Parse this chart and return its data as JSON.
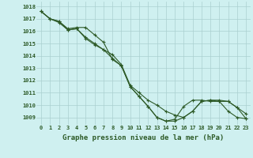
{
  "title": "Graphe pression niveau de la mer (hPa)",
  "background_color": "#cff0f0",
  "grid_color": "#aacfcf",
  "line_color": "#2d5a27",
  "x_labels": [
    "0",
    "1",
    "2",
    "3",
    "4",
    "5",
    "6",
    "7",
    "8",
    "9",
    "10",
    "11",
    "12",
    "13",
    "14",
    "15",
    "16",
    "17",
    "18",
    "19",
    "20",
    "21",
    "22",
    "23"
  ],
  "ylim": [
    1008.4,
    1018.4
  ],
  "yticks": [
    1009,
    1010,
    1011,
    1012,
    1013,
    1014,
    1015,
    1016,
    1017,
    1018
  ],
  "series1": [
    1017.6,
    1017.0,
    1016.8,
    1016.2,
    1016.3,
    1016.3,
    1015.7,
    1015.1,
    1013.7,
    1013.2,
    1011.5,
    1010.7,
    1009.9,
    1009.0,
    1008.7,
    1008.85,
    1009.9,
    1010.4,
    1010.4,
    1010.3,
    1010.3,
    1009.5,
    1009.0,
    1008.9
  ],
  "series2": [
    1017.6,
    1017.0,
    1016.8,
    1016.1,
    1016.2,
    1015.5,
    1015.0,
    1014.5,
    1014.1,
    1013.3,
    1011.6,
    1011.0,
    1010.4,
    1010.0,
    1009.5,
    1009.2,
    1009.0,
    1009.5,
    1010.3,
    1010.4,
    1010.4,
    1010.3,
    1009.8,
    1009.3
  ],
  "series3": [
    1017.6,
    1017.0,
    1016.7,
    1016.1,
    1016.2,
    1015.4,
    1014.9,
    1014.5,
    1013.8,
    1013.2,
    1011.5,
    1010.7,
    1009.9,
    1009.0,
    1008.7,
    1008.7,
    1009.0,
    1009.5,
    1010.3,
    1010.4,
    1010.3,
    1010.3,
    1009.8,
    1008.9
  ]
}
